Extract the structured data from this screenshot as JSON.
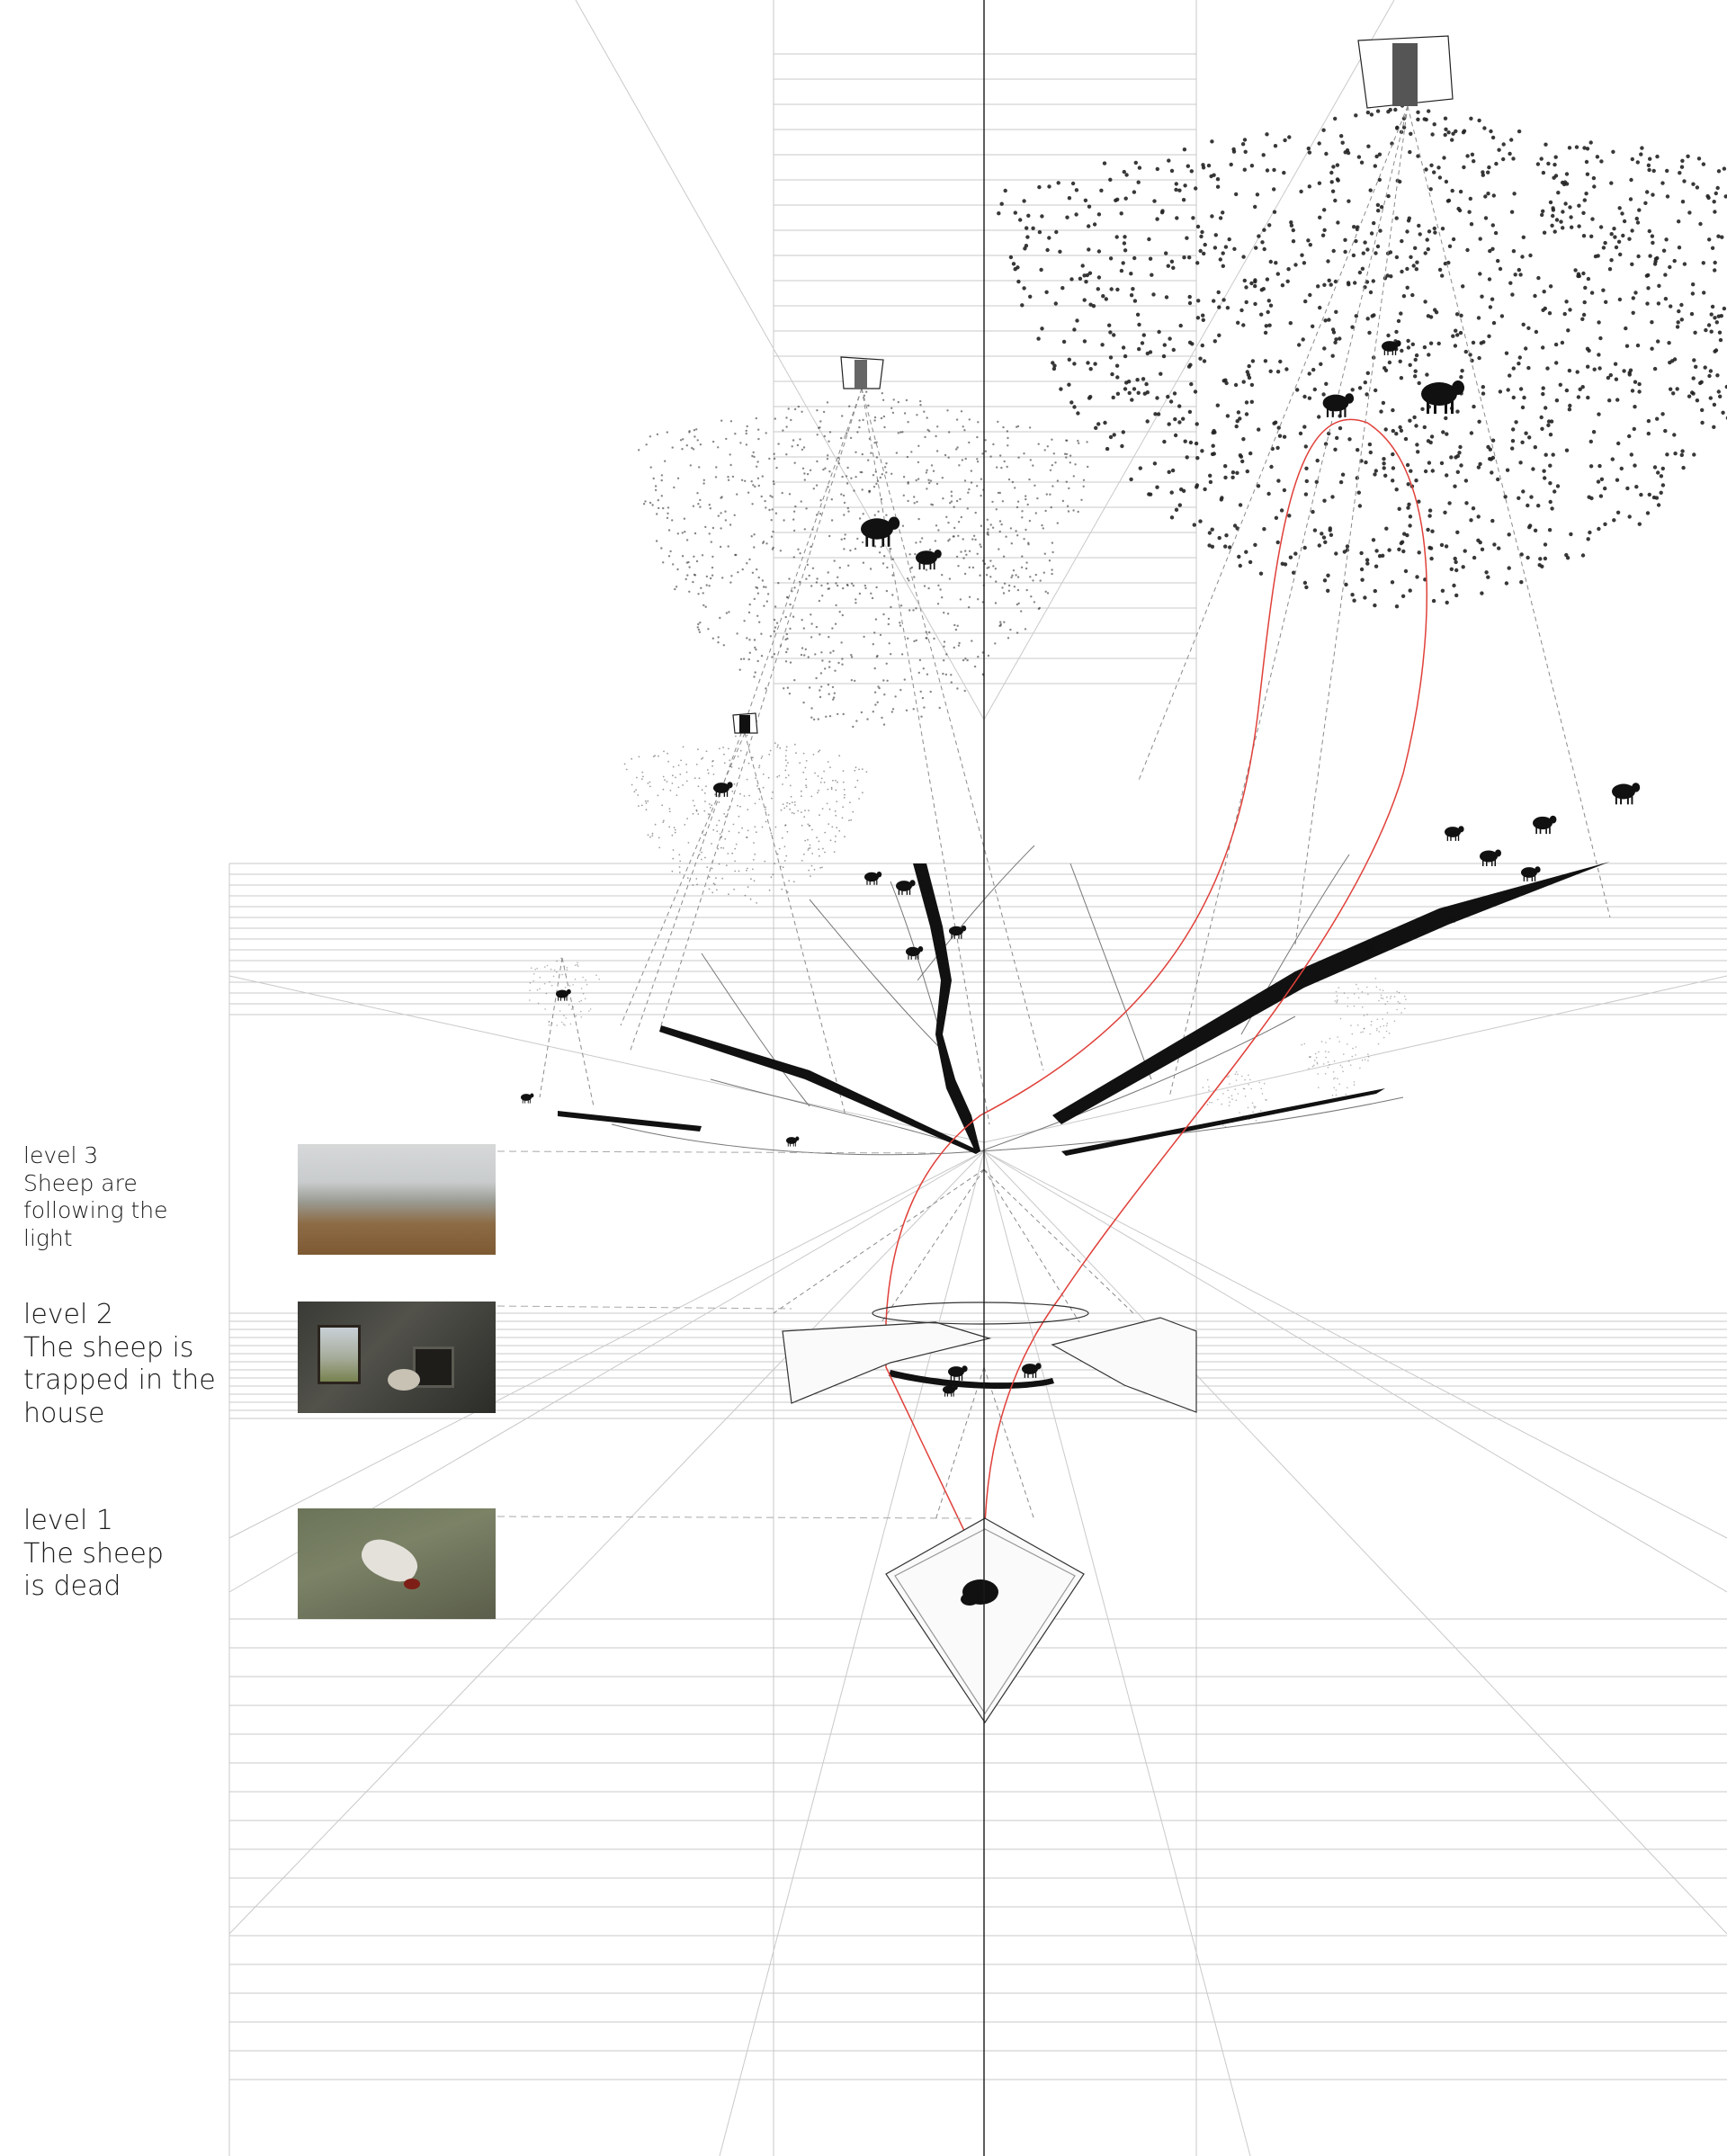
{
  "levels": [
    {
      "id": "level-3",
      "heading": "level 3",
      "lines": [
        "Sheep are",
        "following the",
        "light"
      ],
      "photo": "misty-valley-photo"
    },
    {
      "id": "level-2",
      "heading": "level 2",
      "lines": [
        "The sheep is",
        "trapped in the",
        "house"
      ],
      "photo": "ruined-house-photo"
    },
    {
      "id": "level-1",
      "heading": "level 1",
      "lines": [
        "The sheep",
        "is dead"
      ],
      "photo": "dead-sheep-photo"
    }
  ],
  "colors": {
    "ink": "#1a1a1a",
    "guide": "#c4c4c4",
    "path": "#e0403a",
    "paper": "#ffffff"
  }
}
